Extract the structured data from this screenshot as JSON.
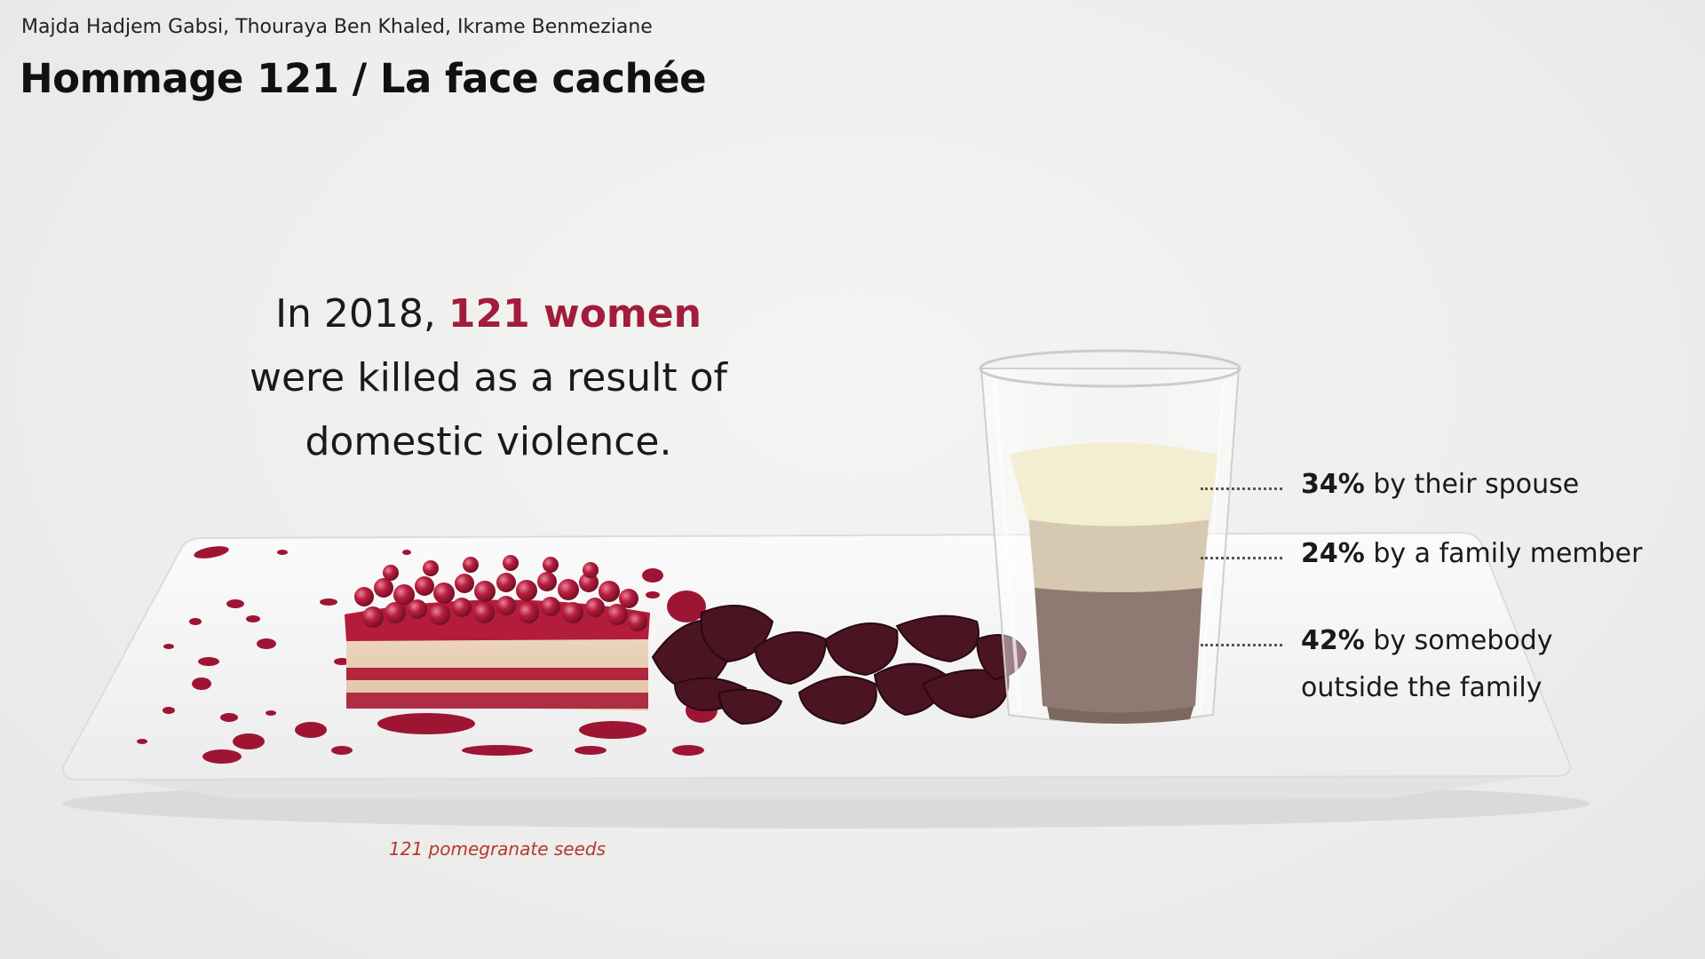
{
  "header": {
    "credits": "Majda Hadjem Gabsi, Thouraya Ben Khaled, Ikrame Benmeziane",
    "title": "Hommage 121 / La face cachée"
  },
  "headline": {
    "lead": "In 2018, ",
    "highlight": "121 women",
    "line2": "were killed as a result of",
    "line3": "domestic violence."
  },
  "stats": [
    {
      "pct": "34%",
      "text": " by their spouse",
      "text2": ""
    },
    {
      "pct": "24%",
      "text": " by a family member",
      "text2": ""
    },
    {
      "pct": "42%",
      "text": " by somebody",
      "text2": "outside the family"
    }
  ],
  "caption": "121 pomegranate seeds",
  "colors": {
    "accent": "#a21c3c",
    "caption": "#b23a2e",
    "layer_top": "#f3edd2",
    "layer_middle": "#d7c8b2",
    "layer_bottom": "#8e7a72"
  }
}
